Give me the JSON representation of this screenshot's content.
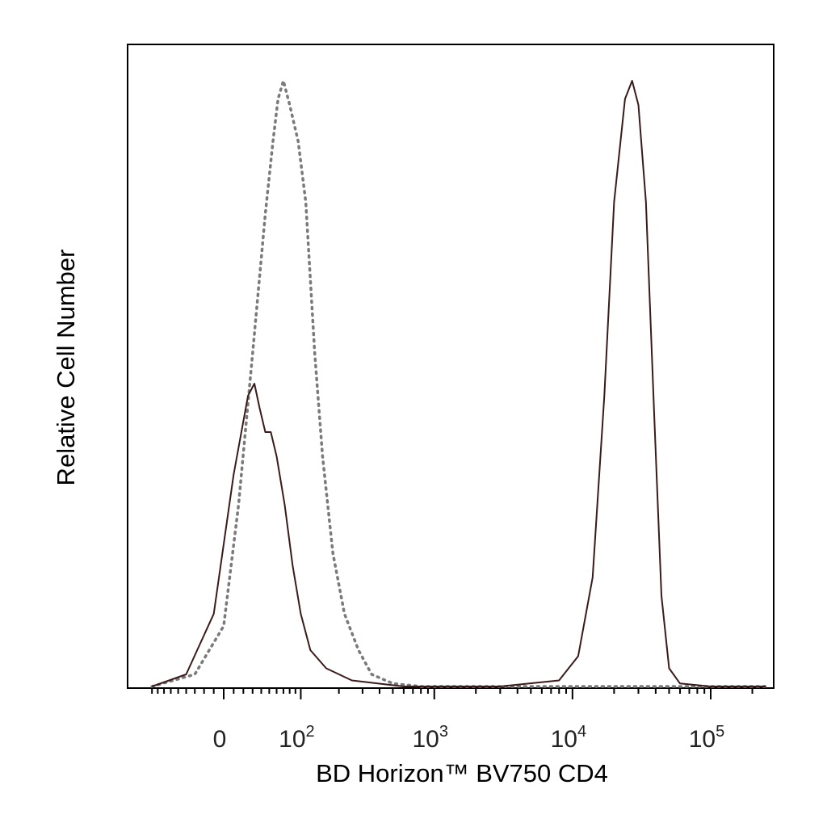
{
  "chart_data": {
    "type": "area",
    "xlabel": "BD Horizon™ BV750  CD4",
    "ylabel": "Relative Cell Number",
    "x_scale": "biexponential",
    "x_tick_labels": [
      {
        "base": "0",
        "exp": ""
      },
      {
        "base": "10",
        "exp": "2"
      },
      {
        "base": "10",
        "exp": "3"
      },
      {
        "base": "10",
        "exp": "4"
      },
      {
        "base": "10",
        "exp": "5"
      }
    ],
    "x_tick_values": [
      0,
      100,
      1000,
      10000,
      100000
    ],
    "ylim": [
      0,
      100
    ],
    "grid": false,
    "legend": "none",
    "series": [
      {
        "style": "dotted",
        "color": "#7a7a7a",
        "points": [
          [
            -90,
            0
          ],
          [
            -30,
            2
          ],
          [
            0,
            10
          ],
          [
            15,
            30
          ],
          [
            30,
            55
          ],
          [
            45,
            78
          ],
          [
            55,
            90
          ],
          [
            62,
            97
          ],
          [
            70,
            100
          ],
          [
            80,
            96
          ],
          [
            95,
            90
          ],
          [
            110,
            80
          ],
          [
            130,
            55
          ],
          [
            150,
            38
          ],
          [
            180,
            22
          ],
          [
            220,
            12
          ],
          [
            280,
            6
          ],
          [
            350,
            2
          ],
          [
            500,
            0.5
          ],
          [
            800,
            0
          ],
          [
            3000,
            0
          ],
          [
            40000,
            0
          ],
          [
            250000,
            0
          ]
        ]
      },
      {
        "style": "solid",
        "color": "#3b1a1a",
        "points": [
          [
            -90,
            0
          ],
          [
            -40,
            2
          ],
          [
            -10,
            12
          ],
          [
            10,
            35
          ],
          [
            25,
            48
          ],
          [
            32,
            50
          ],
          [
            38,
            46
          ],
          [
            45,
            42
          ],
          [
            52,
            42
          ],
          [
            60,
            38
          ],
          [
            72,
            30
          ],
          [
            85,
            20
          ],
          [
            100,
            12
          ],
          [
            120,
            6
          ],
          [
            160,
            3
          ],
          [
            250,
            1
          ],
          [
            600,
            0
          ],
          [
            3000,
            0
          ],
          [
            8000,
            1
          ],
          [
            11000,
            5
          ],
          [
            14000,
            18
          ],
          [
            17000,
            48
          ],
          [
            20000,
            80
          ],
          [
            24000,
            97
          ],
          [
            27000,
            100
          ],
          [
            30000,
            96
          ],
          [
            34000,
            80
          ],
          [
            39000,
            45
          ],
          [
            44000,
            15
          ],
          [
            50000,
            3
          ],
          [
            60000,
            0.5
          ],
          [
            100000,
            0
          ],
          [
            250000,
            0
          ]
        ]
      }
    ]
  }
}
